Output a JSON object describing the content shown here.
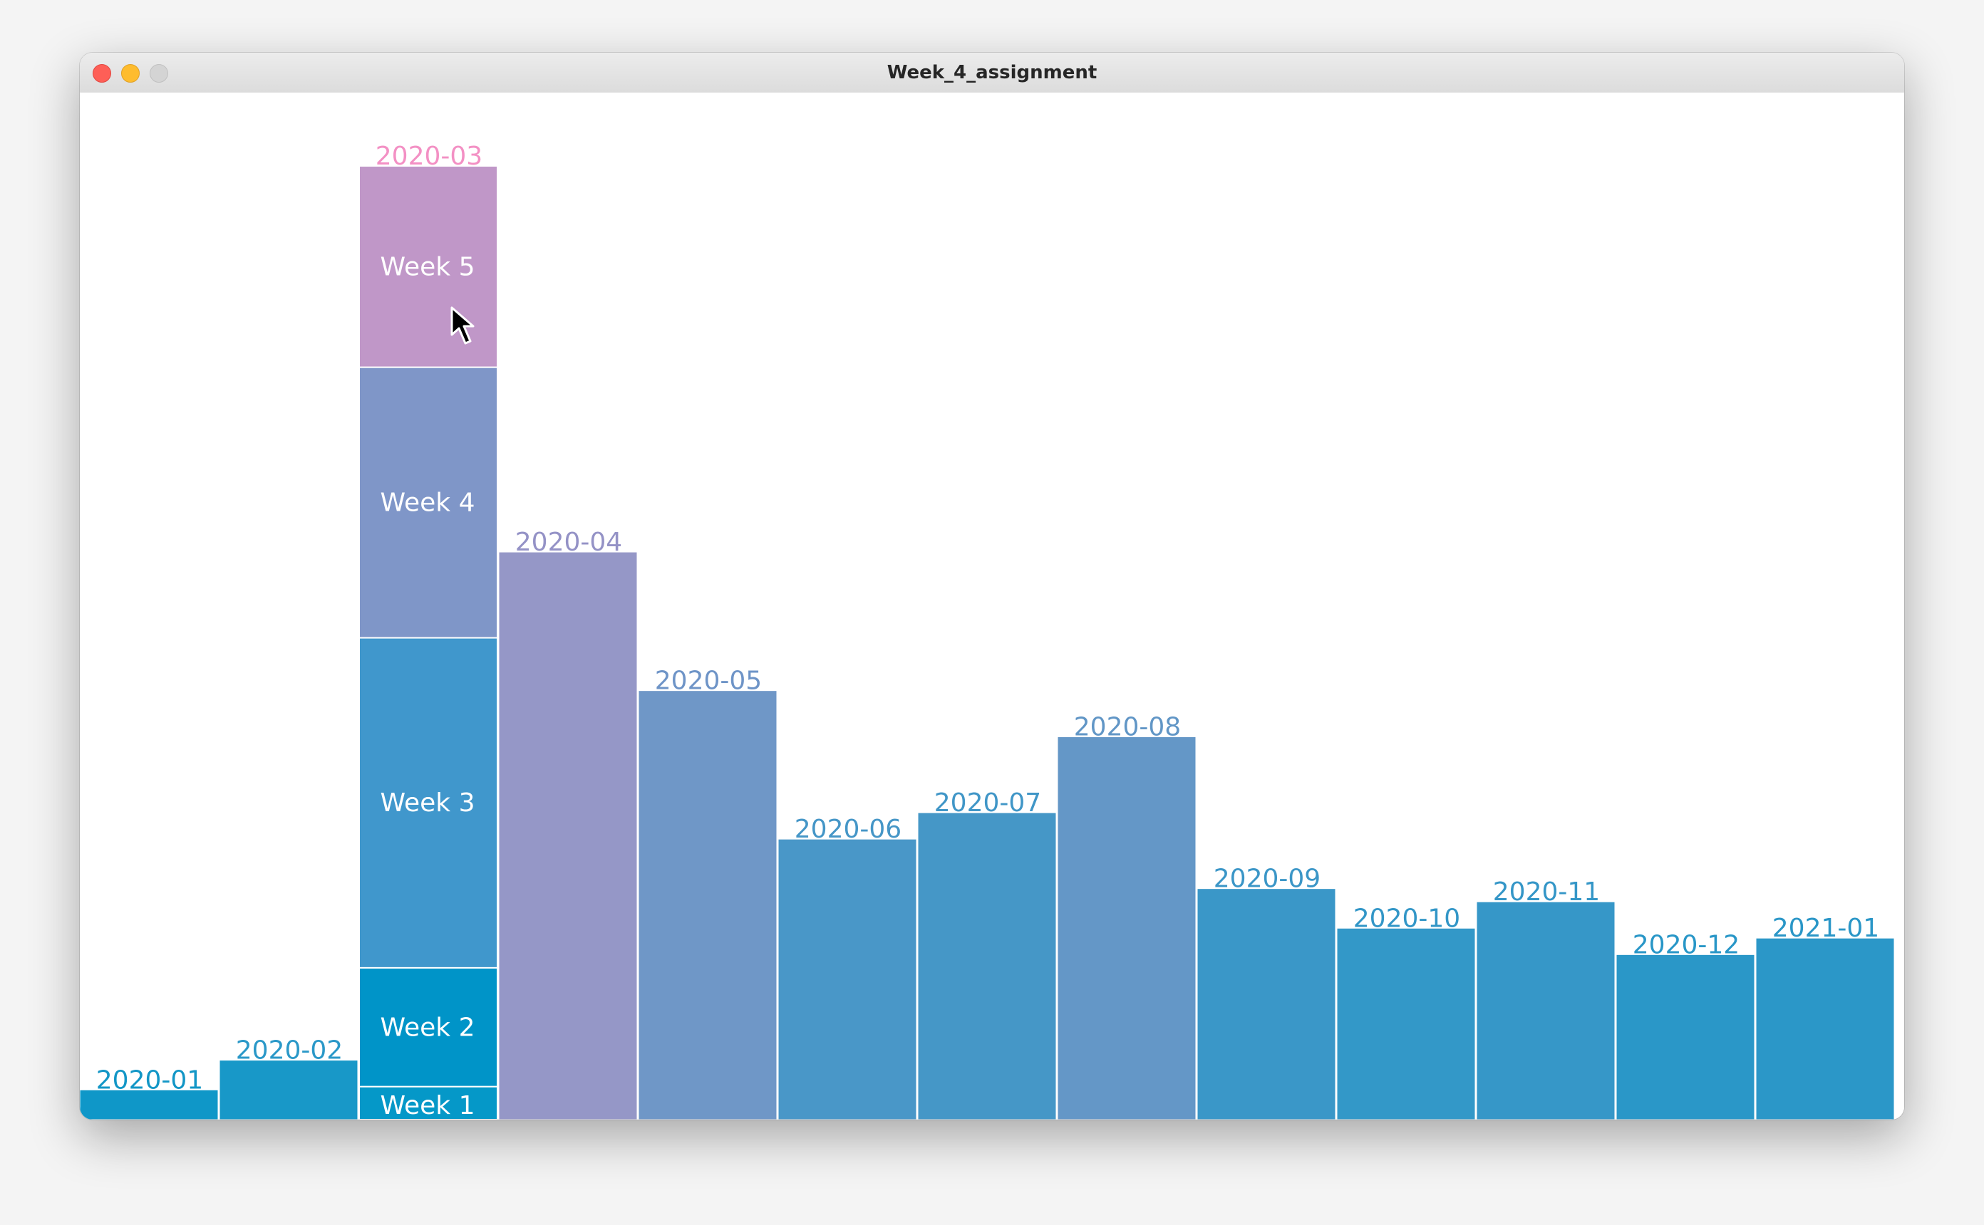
{
  "window": {
    "title": "Week_4_assignment"
  },
  "chart_data": {
    "type": "bar",
    "categories": [
      "2020-01",
      "2020-02",
      "2020-03",
      "2020-04",
      "2020-05",
      "2020-06",
      "2020-07",
      "2020-08",
      "2020-09",
      "2020-10",
      "2020-11",
      "2020-12",
      "2021-01"
    ],
    "values": [
      45,
      90,
      1445,
      860,
      650,
      425,
      465,
      580,
      350,
      290,
      330,
      250,
      275
    ],
    "colors": [
      "#0f97c8",
      "#1898c8",
      "#c097c8",
      "#9597c7",
      "#6f97c7",
      "#4997c8",
      "#4597c7",
      "#6497c7",
      "#3a97c8",
      "#3398c8",
      "#3697c8",
      "#2a97c8",
      "#2b97c8"
    ],
    "label_colors": [
      "#1296c6",
      "#2a98c8",
      "#f390c4",
      "#9492c6",
      "#6e94c7",
      "#4596c7",
      "#4096c7",
      "#6196c6",
      "#3b96c7",
      "#3296c7",
      "#3496c7",
      "#2896c7",
      "#2a96c7"
    ],
    "ylim": [
      0,
      1500
    ],
    "grid": false,
    "legend": "none",
    "drilldown": {
      "category": "2020-03",
      "segments": [
        {
          "label": "Week 1",
          "value": 50,
          "color": "#0598c8"
        },
        {
          "label": "Week 2",
          "value": 180,
          "color": "#0094c8"
        },
        {
          "label": "Week 3",
          "value": 500,
          "color": "#4097cc"
        },
        {
          "label": "Week 4",
          "value": 410,
          "color": "#7f96c8"
        },
        {
          "label": "Week 5",
          "value": 305,
          "color": "#c097c8"
        }
      ]
    }
  }
}
